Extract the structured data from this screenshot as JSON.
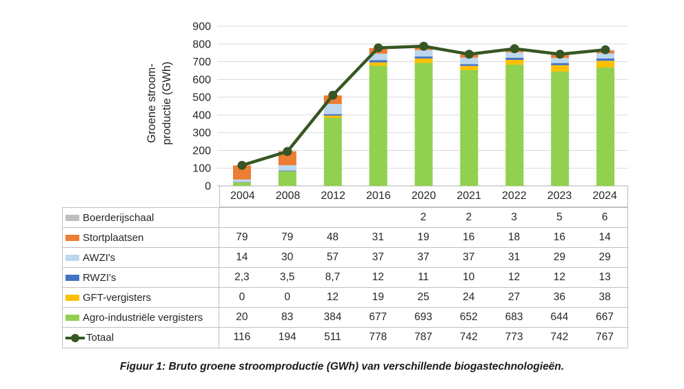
{
  "figure": {
    "caption": "Figuur 1: Bruto groene stroomproductie (GWh) van verschillende biogastechnologieën."
  },
  "chart_data": {
    "type": "bar",
    "stacked": true,
    "title": "",
    "xlabel": "",
    "ylabel_lines": [
      "Groene stroom-",
      "productie (GWh)"
    ],
    "ylim": [
      0,
      900
    ],
    "ytick_step": 100,
    "grid": true,
    "legend_position": "table-left-column",
    "categories": [
      "2004",
      "2008",
      "2012",
      "2016",
      "2020",
      "2021",
      "2022",
      "2023",
      "2024"
    ],
    "series": [
      {
        "name": "Agro-industriële vergisters",
        "color": "#92D050",
        "values": [
          20,
          83,
          384,
          677,
          693,
          652,
          683,
          644,
          667
        ]
      },
      {
        "name": "GFT-vergisters",
        "color": "#FFC000",
        "values": [
          0,
          0,
          12,
          19,
          25,
          24,
          27,
          36,
          38
        ]
      },
      {
        "name": "RWZI's",
        "color": "#4472C4",
        "values": [
          2.3,
          3.5,
          8.7,
          12,
          11,
          10,
          12,
          12,
          13
        ]
      },
      {
        "name": "AWZI's",
        "color": "#BDD7EE",
        "values": [
          14,
          30,
          57,
          37,
          37,
          37,
          31,
          29,
          29
        ]
      },
      {
        "name": "Stortplaatsen",
        "color": "#ED7D31",
        "values": [
          79,
          79,
          48,
          31,
          19,
          16,
          18,
          16,
          14
        ]
      },
      {
        "name": "Boerderijschaal",
        "color": "#BFBFBF",
        "values": [
          0,
          0,
          0,
          0,
          2,
          2,
          3,
          5,
          6
        ]
      }
    ],
    "line_series": {
      "name": "Totaal",
      "color": "#375623",
      "values": [
        116,
        194,
        511,
        778,
        787,
        742,
        773,
        742,
        767
      ]
    }
  },
  "table": {
    "years": [
      "2004",
      "2008",
      "2012",
      "2016",
      "2020",
      "2021",
      "2022",
      "2023",
      "2024"
    ],
    "rows": [
      {
        "label": "Boerderijschaal",
        "swatch": "rect",
        "color": "#BFBFBF",
        "values": [
          "",
          "",
          "",
          "",
          "2",
          "2",
          "3",
          "5",
          "6"
        ]
      },
      {
        "label": "Stortplaatsen",
        "swatch": "rect",
        "color": "#ED7D31",
        "values": [
          "79",
          "79",
          "48",
          "31",
          "19",
          "16",
          "18",
          "16",
          "14"
        ]
      },
      {
        "label": "AWZI's",
        "swatch": "rect",
        "color": "#BDD7EE",
        "values": [
          "14",
          "30",
          "57",
          "37",
          "37",
          "37",
          "31",
          "29",
          "29"
        ]
      },
      {
        "label": "RWZI's",
        "swatch": "rect",
        "color": "#4472C4",
        "values": [
          "2,3",
          "3,5",
          "8,7",
          "12",
          "11",
          "10",
          "12",
          "12",
          "13"
        ]
      },
      {
        "label": "GFT-vergisters",
        "swatch": "rect",
        "color": "#FFC000",
        "values": [
          "0",
          "0",
          "12",
          "19",
          "25",
          "24",
          "27",
          "36",
          "38"
        ]
      },
      {
        "label": "Agro-industriële vergisters",
        "swatch": "rect",
        "color": "#92D050",
        "values": [
          "20",
          "83",
          "384",
          "677",
          "693",
          "652",
          "683",
          "644",
          "667"
        ]
      },
      {
        "label": "Totaal",
        "swatch": "line",
        "color": "#375623",
        "values": [
          "116",
          "194",
          "511",
          "778",
          "787",
          "742",
          "773",
          "742",
          "767"
        ]
      }
    ]
  },
  "colors": {
    "axis_line": "#BFBFBF",
    "gridline": "#D9D9D9",
    "table_border": "#BFBFBF",
    "text": "#262626"
  }
}
